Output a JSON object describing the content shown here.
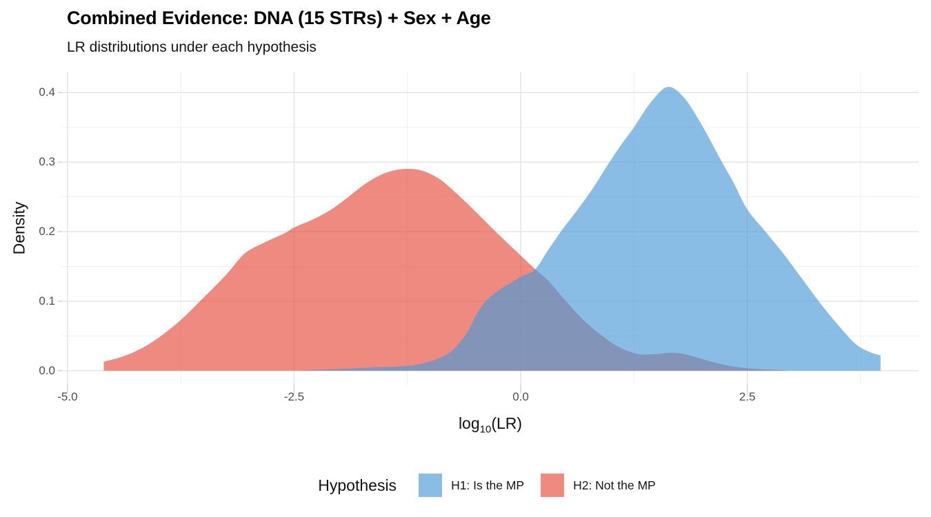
{
  "header": {
    "title": "Combined Evidence: DNA (15 STRs) + Sex + Age",
    "subtitle": "LR distributions under each hypothesis"
  },
  "axes": {
    "y_label": "Density",
    "x_label_base": "log",
    "x_label_sub": "10",
    "x_label_rest": "(LR)"
  },
  "legend": {
    "title": "Hypothesis",
    "items": [
      {
        "label": "H1: Is the MP",
        "color": "rgba(74,154,215,0.65)"
      },
      {
        "label": "H2: Not the MP",
        "color": "rgba(229,75,60,0.65)"
      }
    ]
  },
  "chart_data": {
    "type": "area",
    "title": "Combined Evidence: DNA (15 STRs) + Sex + Age",
    "subtitle": "LR distributions under each hypothesis",
    "xlabel": "log10(LR)",
    "ylabel": "Density",
    "x_domain": [
      -5.06,
      4.39
    ],
    "y_domain": [
      -0.02,
      0.43
    ],
    "grid": {
      "major_color": "#e2e2e2",
      "minor_color": "#efefef",
      "major_width": 1.4,
      "minor_width": 1,
      "tick_color": "#d4d4d4",
      "tick_len": 13
    },
    "x_major_ticks": [
      {
        "value": -5.0,
        "label": "-5.0"
      },
      {
        "value": -2.5,
        "label": "-2.5"
      },
      {
        "value": 0.0,
        "label": "0.0"
      },
      {
        "value": 2.5,
        "label": "2.5"
      }
    ],
    "x_minor_ticks": [
      -3.75,
      -1.25,
      1.25,
      3.75
    ],
    "y_major_ticks": [
      {
        "value": 0.0,
        "label": "0.0"
      },
      {
        "value": 0.1,
        "label": "0.1"
      },
      {
        "value": 0.2,
        "label": "0.2"
      },
      {
        "value": 0.3,
        "label": "0.3"
      },
      {
        "value": 0.4,
        "label": "0.4"
      }
    ],
    "y_minor_ticks": [
      0.05,
      0.15,
      0.25,
      0.35
    ],
    "series": [
      {
        "name": "H2: Not the MP",
        "hypothesis": "H2",
        "fill": "#E54B3C",
        "opacity": 0.65,
        "points": [
          [
            -4.6,
            0.013
          ],
          [
            -4.4,
            0.02
          ],
          [
            -4.2,
            0.031
          ],
          [
            -4.0,
            0.047
          ],
          [
            -3.75,
            0.073
          ],
          [
            -3.5,
            0.105
          ],
          [
            -3.25,
            0.138
          ],
          [
            -3.05,
            0.168
          ],
          [
            -2.85,
            0.183
          ],
          [
            -2.6,
            0.198
          ],
          [
            -2.5,
            0.206
          ],
          [
            -2.3,
            0.217
          ],
          [
            -2.1,
            0.231
          ],
          [
            -1.9,
            0.25
          ],
          [
            -1.7,
            0.27
          ],
          [
            -1.5,
            0.284
          ],
          [
            -1.3,
            0.29
          ],
          [
            -1.1,
            0.288
          ],
          [
            -0.9,
            0.276
          ],
          [
            -0.7,
            0.254
          ],
          [
            -0.5,
            0.229
          ],
          [
            -0.3,
            0.203
          ],
          [
            -0.1,
            0.178
          ],
          [
            0.16,
            0.146
          ],
          [
            0.3,
            0.13
          ],
          [
            0.5,
            0.1
          ],
          [
            0.7,
            0.072
          ],
          [
            0.9,
            0.05
          ],
          [
            1.1,
            0.033
          ],
          [
            1.3,
            0.024
          ],
          [
            1.5,
            0.024
          ],
          [
            1.65,
            0.026
          ],
          [
            1.8,
            0.024
          ],
          [
            2.0,
            0.017
          ],
          [
            2.2,
            0.01
          ],
          [
            2.4,
            0.005
          ],
          [
            2.6,
            0.0025
          ],
          [
            2.85,
            0.001
          ],
          [
            2.95,
            0.0
          ]
        ]
      },
      {
        "name": "H1: Is the MP",
        "hypothesis": "H1",
        "fill": "#4A9AD7",
        "opacity": 0.65,
        "points": [
          [
            -2.45,
            0.0
          ],
          [
            -2.2,
            0.0015
          ],
          [
            -1.9,
            0.003
          ],
          [
            -1.6,
            0.005
          ],
          [
            -1.35,
            0.006
          ],
          [
            -1.1,
            0.01
          ],
          [
            -0.9,
            0.018
          ],
          [
            -0.75,
            0.03
          ],
          [
            -0.6,
            0.053
          ],
          [
            -0.5,
            0.078
          ],
          [
            -0.4,
            0.098
          ],
          [
            -0.25,
            0.115
          ],
          [
            -0.1,
            0.127
          ],
          [
            0.0,
            0.135
          ],
          [
            0.16,
            0.146
          ],
          [
            0.3,
            0.173
          ],
          [
            0.46,
            0.203
          ],
          [
            0.63,
            0.232
          ],
          [
            0.8,
            0.263
          ],
          [
            0.95,
            0.294
          ],
          [
            1.11,
            0.325
          ],
          [
            1.25,
            0.35
          ],
          [
            1.43,
            0.385
          ],
          [
            1.62,
            0.408
          ],
          [
            1.8,
            0.393
          ],
          [
            2.0,
            0.353
          ],
          [
            2.2,
            0.305
          ],
          [
            2.35,
            0.27
          ],
          [
            2.5,
            0.232
          ],
          [
            2.7,
            0.2
          ],
          [
            2.9,
            0.168
          ],
          [
            3.1,
            0.133
          ],
          [
            3.3,
            0.098
          ],
          [
            3.5,
            0.066
          ],
          [
            3.7,
            0.038
          ],
          [
            3.85,
            0.027
          ],
          [
            3.97,
            0.022
          ]
        ]
      }
    ]
  }
}
